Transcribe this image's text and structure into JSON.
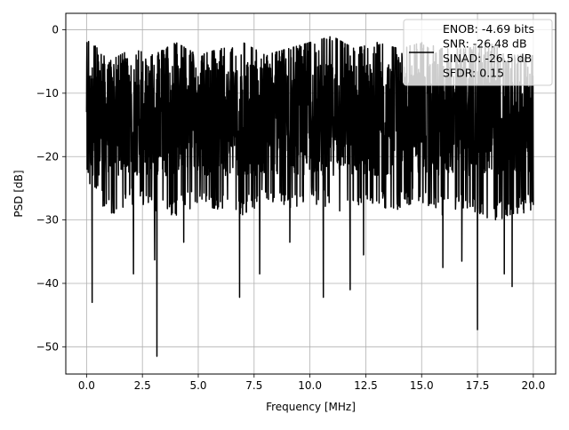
{
  "chart_data": {
    "type": "line",
    "xlabel": "Frequency [MHz]",
    "ylabel": "PSD [dB]",
    "xlim": [
      -0.93,
      21.0
    ],
    "ylim": [
      -54.3,
      2.6
    ],
    "xticks": [
      0.0,
      2.5,
      5.0,
      7.5,
      10.0,
      12.5,
      15.0,
      17.5,
      20.0
    ],
    "xtick_labels": [
      "0.0",
      "2.5",
      "5.0",
      "7.5",
      "10.0",
      "12.5",
      "15.0",
      "17.5",
      "20.0"
    ],
    "yticks": [
      0,
      -10,
      -20,
      -30,
      -40,
      -50
    ],
    "ytick_labels": [
      "0",
      "−10",
      "−20",
      "−30",
      "−40",
      "−50"
    ],
    "grid": true,
    "legend_position": "top-right",
    "legend_lines": [
      "ENOB: -4.69 bits",
      "SNR: -26.48 dB",
      "SINAD: -26.5 dB",
      "SFDR: 0.15"
    ],
    "series": [
      {
        "color": "#000000",
        "x_range": [
          0.0,
          20.0
        ],
        "y_upper_envelope": [
          -2,
          -6,
          -4,
          -5,
          -3,
          -5,
          -4,
          -3,
          -5,
          -4,
          -3,
          -2,
          -4,
          -3,
          -4,
          -3,
          -4,
          -4,
          -3,
          -5,
          -5
        ],
        "y_lower_envelope": [
          -23,
          -28,
          -26,
          -27,
          -28,
          -26,
          -27,
          -28,
          -26,
          -27,
          -26,
          -27,
          -28,
          -27,
          -27,
          -26,
          -28,
          -27,
          -29,
          -28,
          -27
        ],
        "y_typical_range": [
          -23,
          -5
        ],
        "dips": [
          {
            "x": 0.25,
            "y": -43.0
          },
          {
            "x": 2.1,
            "y": -38.5
          },
          {
            "x": 3.05,
            "y": -36.3
          },
          {
            "x": 3.15,
            "y": -51.5
          },
          {
            "x": 4.35,
            "y": -33.5
          },
          {
            "x": 6.85,
            "y": -42.2
          },
          {
            "x": 7.75,
            "y": -38.5
          },
          {
            "x": 9.1,
            "y": -33.5
          },
          {
            "x": 10.6,
            "y": -42.2
          },
          {
            "x": 11.8,
            "y": -41.0
          },
          {
            "x": 12.4,
            "y": -35.5
          },
          {
            "x": 15.95,
            "y": -37.5
          },
          {
            "x": 16.8,
            "y": -36.5
          },
          {
            "x": 17.5,
            "y": -47.3
          },
          {
            "x": 18.7,
            "y": -38.5
          },
          {
            "x": 19.05,
            "y": -40.5
          }
        ]
      }
    ]
  }
}
